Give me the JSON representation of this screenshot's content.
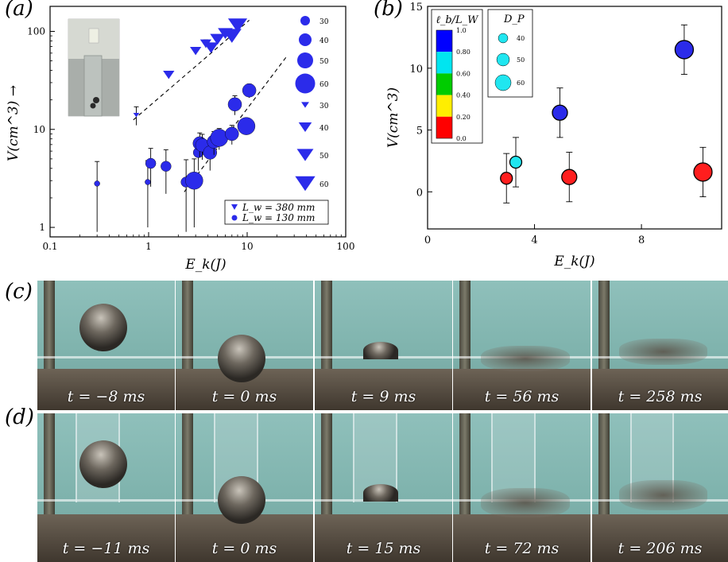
{
  "panel_labels": {
    "a": "(a)",
    "b": "(b)",
    "c": "(c)",
    "d": "(d)"
  },
  "colors": {
    "blue": "#2b2bea",
    "cyan": "#20e6f0",
    "red": "#ff1e1e",
    "photo_bg": "#7fb3ad"
  },
  "chart_data": [
    {
      "type": "scatter",
      "panel": "a",
      "xlabel": "E_k(J)",
      "ylabel": "V(cm^3) →",
      "xscale": "log",
      "yscale": "log",
      "xlim": [
        0.1,
        100
      ],
      "ylim": [
        0.8,
        180
      ],
      "xticks": [
        "0.1",
        "1",
        "10",
        "100"
      ],
      "yticks": [
        "1",
        "10",
        "100"
      ],
      "series": [
        {
          "name": "L_w = 380 mm",
          "marker": "triangle-down",
          "color": "#2b2bea",
          "points": [
            {
              "x": 0.75,
              "y": 14.0,
              "yerr": 3.0,
              "size": 30
            },
            {
              "x": 1.6,
              "y": 36,
              "yerr": 3,
              "size": 40
            },
            {
              "x": 3.0,
              "y": 63,
              "yerr": 5,
              "size": 40
            },
            {
              "x": 3.8,
              "y": 75,
              "yerr": 7,
              "size": 40
            },
            {
              "x": 4.3,
              "y": 68,
              "yerr": 6,
              "size": 50
            },
            {
              "x": 5.0,
              "y": 83,
              "yerr": 8,
              "size": 50
            },
            {
              "x": 6.0,
              "y": 95,
              "yerr": 10,
              "size": 50
            },
            {
              "x": 7.0,
              "y": 90,
              "yerr": 10,
              "size": 60
            },
            {
              "x": 8.0,
              "y": 115,
              "yerr": 10,
              "size": 60
            }
          ]
        },
        {
          "name": "L_w = 130 mm",
          "marker": "circle",
          "color": "#2b2bea",
          "points": [
            {
              "x": 0.3,
              "y": 2.8,
              "yerr": 1.9,
              "size": 30
            },
            {
              "x": 0.98,
              "y": 2.9,
              "yerr": 1.9,
              "size": 30
            },
            {
              "x": 1.05,
              "y": 4.5,
              "yerr": 1.9,
              "size": 40
            },
            {
              "x": 1.5,
              "y": 4.2,
              "yerr": 2.0,
              "size": 40
            },
            {
              "x": 2.4,
              "y": 2.9,
              "yerr": 2.0,
              "size": 40
            },
            {
              "x": 2.9,
              "y": 3.0,
              "yerr": 2.0,
              "size": 60
            },
            {
              "x": 3.2,
              "y": 5.8,
              "yerr": 2.0,
              "size": 40
            },
            {
              "x": 3.3,
              "y": 7.2,
              "yerr": 2.0,
              "size": 50
            },
            {
              "x": 3.5,
              "y": 6.9,
              "yerr": 2.0,
              "size": 50
            },
            {
              "x": 4.2,
              "y": 5.8,
              "yerr": 2.0,
              "size": 50
            },
            {
              "x": 4.6,
              "y": 7.5,
              "yerr": 2.0,
              "size": 50
            },
            {
              "x": 5.2,
              "y": 8.2,
              "yerr": 2.0,
              "size": 60
            },
            {
              "x": 7.0,
              "y": 9.0,
              "yerr": 2.0,
              "size": 50
            },
            {
              "x": 7.5,
              "y": 18.0,
              "yerr": 4.0,
              "size": 50
            },
            {
              "x": 9.8,
              "y": 10.8,
              "yerr": 2.0,
              "size": 60
            },
            {
              "x": 10.5,
              "y": 25.0,
              "yerr": 4.0,
              "size": 50
            }
          ]
        }
      ],
      "fit_lines": [
        {
          "series": "L_w = 380 mm",
          "x": [
            0.7,
            10.5
          ],
          "y": [
            12.5,
            130
          ]
        },
        {
          "series": "L_w = 130 mm",
          "x": [
            2.3,
            25
          ],
          "y": [
            2.3,
            55
          ]
        }
      ],
      "size_legend": {
        "circles": [
          "30",
          "40",
          "50",
          "60"
        ],
        "triangles": [
          "30",
          "40",
          "50",
          "60"
        ]
      },
      "legend": {
        "position": "bottom-right",
        "entries": [
          "L_w = 380 mm",
          "L_w = 130 mm"
        ]
      },
      "inset": "photograph"
    },
    {
      "type": "scatter",
      "panel": "b",
      "xlabel": "E_k(J)",
      "ylabel": "V(cm^3)",
      "xlim": [
        0,
        11
      ],
      "ylim": [
        -3,
        15
      ],
      "xticks": [
        "0",
        "4",
        "8"
      ],
      "yticks": [
        "0",
        "5",
        "10",
        "15"
      ],
      "colorbar": {
        "title": "ℓ_b/L_W",
        "ticks": [
          "1.0",
          "0.80",
          "0.60",
          "0.40",
          "0.20",
          "0.0"
        ],
        "colors": [
          "#0000ff",
          "#00e5f0",
          "#00cc00",
          "#ffee00",
          "#ff0000"
        ]
      },
      "size_legend": {
        "title": "D_P",
        "entries": [
          "40",
          "50",
          "60"
        ]
      },
      "points": [
        {
          "x": 2.95,
          "y": 1.1,
          "yerr": 2.0,
          "size": 40,
          "color": "#ff1e1e"
        },
        {
          "x": 3.3,
          "y": 2.4,
          "yerr": 2.0,
          "size": 40,
          "color": "#20e6f0"
        },
        {
          "x": 4.95,
          "y": 6.4,
          "yerr": 2.0,
          "size": 50,
          "color": "#2b2bea"
        },
        {
          "x": 5.3,
          "y": 1.2,
          "yerr": 2.0,
          "size": 50,
          "color": "#ff1e1e"
        },
        {
          "x": 9.6,
          "y": 11.5,
          "yerr": 2.0,
          "size": 60,
          "color": "#2b2bea"
        },
        {
          "x": 10.3,
          "y": 1.6,
          "yerr": 2.0,
          "size": 60,
          "color": "#ff1e1e"
        }
      ]
    }
  ],
  "photo_rows": {
    "c": {
      "labels": [
        "t = −8 ms",
        "t = 0 ms",
        "t = 9 ms",
        "t = 56 ms",
        "t = 258 ms"
      ]
    },
    "d": {
      "labels": [
        "t = −11 ms",
        "t = 0 ms",
        "t = 15 ms",
        "t = 72 ms",
        "t = 206 ms"
      ]
    }
  }
}
